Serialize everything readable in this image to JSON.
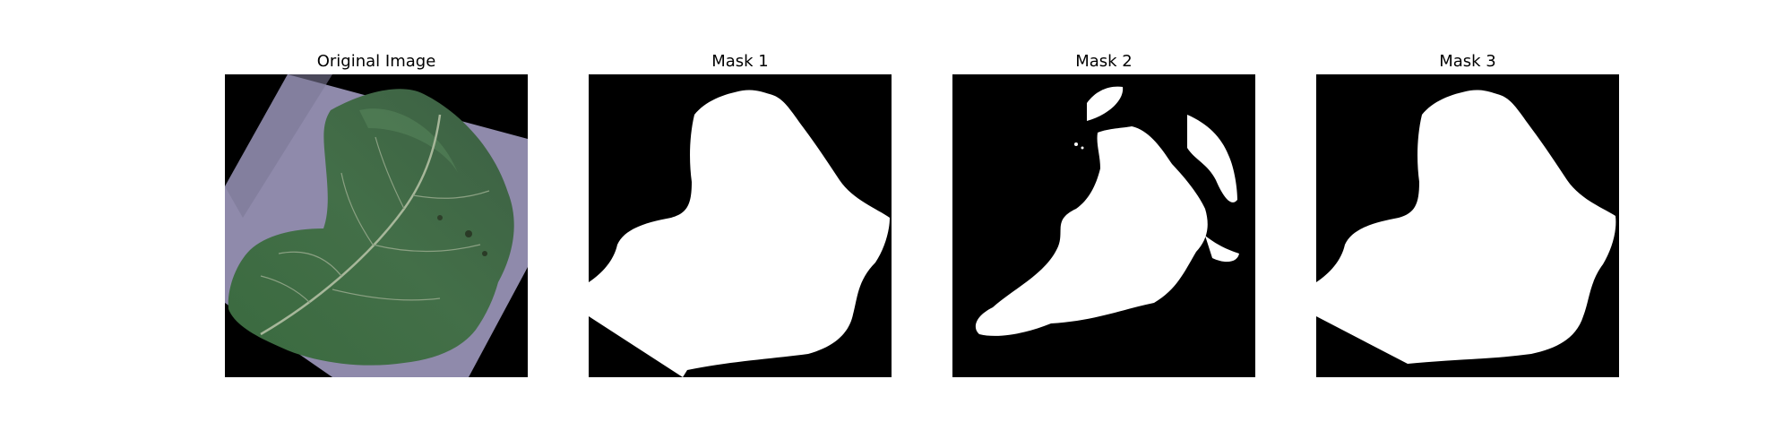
{
  "figure": {
    "panels": [
      {
        "title": "Original Image",
        "kind": "photo",
        "subject": "leaf-photo"
      },
      {
        "title": "Mask 1",
        "kind": "mask",
        "subject": "segmentation-mask"
      },
      {
        "title": "Mask 2",
        "kind": "mask",
        "subject": "segmentation-mask"
      },
      {
        "title": "Mask 3",
        "kind": "mask",
        "subject": "segmentation-mask"
      }
    ],
    "colors": {
      "background": "#ffffff",
      "mask_background": "#000000",
      "mask_foreground": "#ffffff",
      "leaf_green": "#3f6b45",
      "paper_lavender": "#8e8aa8"
    }
  }
}
